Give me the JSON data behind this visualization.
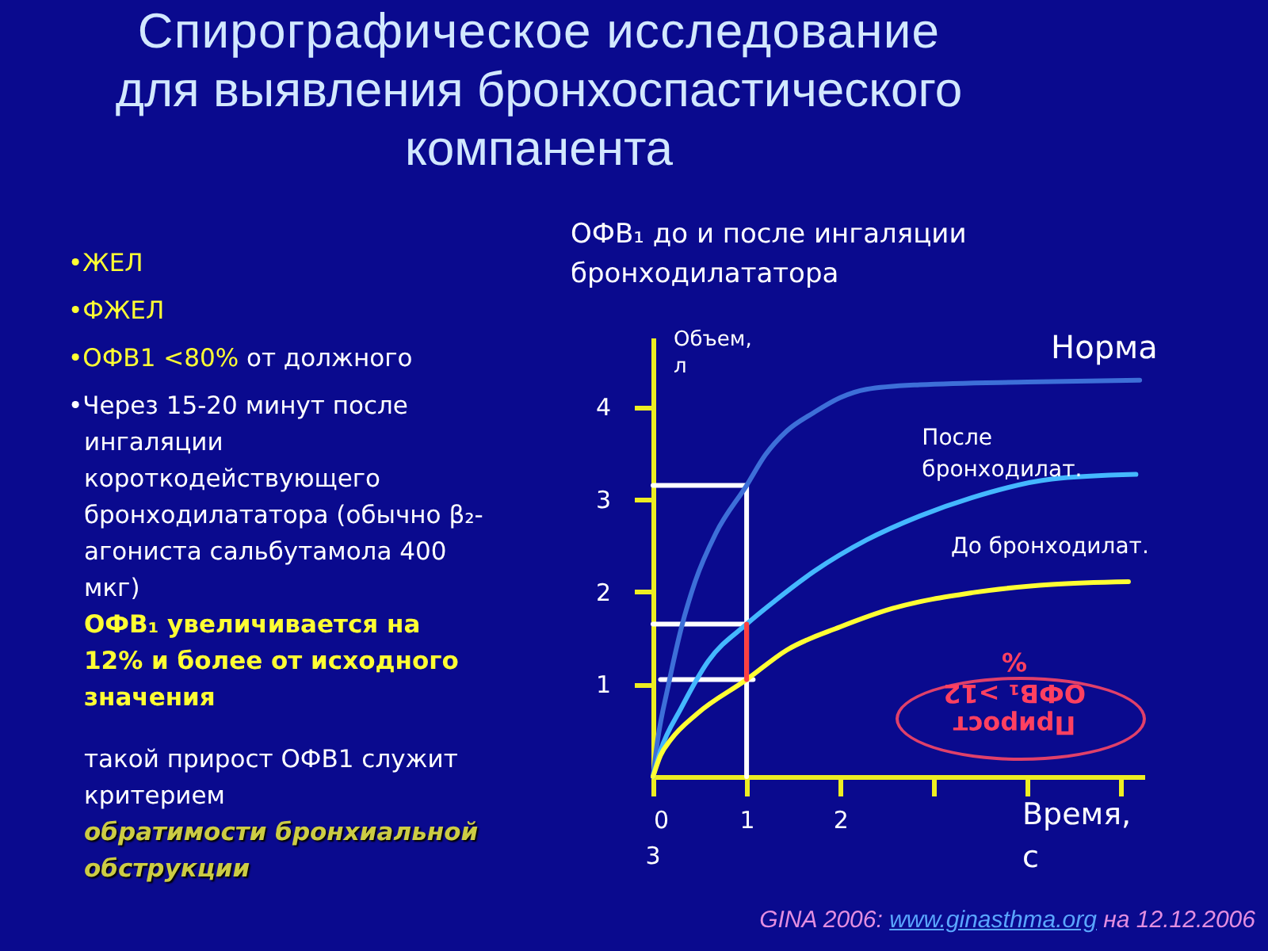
{
  "chart_data": {
    "type": "line",
    "title": "Спирографическое исследование для выявления бронхоспастического компанента",
    "subtitle": "ОФВ₁ до и после ингаляции бронходилататора",
    "xlabel": "Время, с",
    "ylabel": "Объем, л",
    "xlim": [
      0,
      5.25
    ],
    "ylim": [
      0,
      4.75
    ],
    "xticks": [
      0,
      1,
      2,
      {
        "value": 3,
        "label": null
      },
      {
        "value": 4,
        "label": null
      },
      {
        "value": 5,
        "label": null
      }
    ],
    "yticks": [
      1,
      2,
      3,
      4
    ],
    "grid": false,
    "series": [
      {
        "color": "#ffffff",
        "x": [
          0,
          1,
          1
        ],
        "values": [
          3.15,
          3.15,
          0
        ]
      },
      {
        "color": "#ffffff",
        "x": [
          0,
          1
        ],
        "values": [
          1.65,
          1.65
        ]
      },
      {
        "color": "#ffffff",
        "x": [
          0.08,
          1.07
        ],
        "values": [
          1.05,
          1.05
        ]
      },
      {
        "name": "Норма",
        "color": "#3d6fd8",
        "x": [
          0,
          0.05,
          0.16,
          0.3,
          0.45,
          0.67,
          1,
          1.2,
          1.43,
          1.72,
          2,
          2.28,
          2.85,
          4,
          5.2
        ],
        "values": [
          0,
          0.4,
          0.97,
          1.6,
          2.11,
          2.63,
          3.15,
          3.48,
          3.74,
          3.94,
          4.1,
          4.19,
          4.24,
          4.27,
          4.29
        ]
      },
      {
        "name": "После бронходилат.",
        "color": "#44b8ff",
        "x": [
          0,
          0.08,
          0.3,
          0.59,
          1,
          1.3,
          1.72,
          2.28,
          2.85,
          3.41,
          4.26,
          5.16
        ],
        "values": [
          0,
          0.28,
          0.74,
          1.25,
          1.65,
          1.9,
          2.22,
          2.56,
          2.82,
          3.02,
          3.22,
          3.27
        ]
      },
      {
        "name": "До бронходилат.",
        "color": "#ffff33",
        "x": [
          0,
          0.08,
          0.19,
          0.47,
          1,
          1.43,
          2,
          2.56,
          3.41,
          4.26,
          5.08
        ],
        "values": [
          0,
          0.23,
          0.4,
          0.68,
          1.05,
          1.37,
          1.62,
          1.82,
          1.99,
          2.08,
          2.11
        ]
      },
      {
        "color": "#ff4040",
        "x": [
          1,
          1
        ],
        "values": [
          1.05,
          1.65
        ]
      }
    ],
    "annotations": [
      "•ЖЕЛ",
      "•ФЖЕЛ",
      "•ОФВ1 <80%",
      "от должного",
      "•Через 15-20 минут после ингаляции короткодействующего бронходилататора (обычно β₂-агониста сальбутамола 400 мкг)",
      "ОФВ₁ увеличивается на 12% и более от исходного значения",
      "такой прирост ОФВ1 служит критерием",
      "обратимости бронхиальной обструкции",
      "Прирост ОФВ₁ >12 %",
      "3",
      "GINA 2006:",
      "www.ginasthma.org",
      "на 12.12.2006"
    ]
  }
}
